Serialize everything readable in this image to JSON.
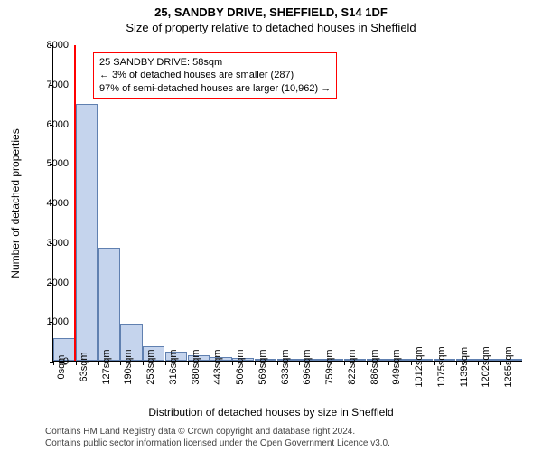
{
  "title_line1": "25, SANDBY DRIVE, SHEFFIELD, S14 1DF",
  "title_line2": "Size of property relative to detached houses in Sheffield",
  "ylabel": "Number of detached properties",
  "xlabel": "Distribution of detached houses by size in Sheffield",
  "footer_line1": "Contains HM Land Registry data © Crown copyright and database right 2024.",
  "footer_line2": "Contains public sector information licensed under the Open Government Licence v3.0.",
  "chart": {
    "type": "histogram",
    "y_max": 8000,
    "ytick_step": 1000,
    "bar_fill": "#c5d4ed",
    "bar_stroke": "#6080b0",
    "marker_color": "#ff0000",
    "marker_sqm": 58,
    "x_labels": [
      "0sqm",
      "63sqm",
      "127sqm",
      "190sqm",
      "253sqm",
      "316sqm",
      "380sqm",
      "443sqm",
      "506sqm",
      "569sqm",
      "633sqm",
      "696sqm",
      "759sqm",
      "822sqm",
      "886sqm",
      "949sqm",
      "1012sqm",
      "1075sqm",
      "1139sqm",
      "1202sqm",
      "1265sqm"
    ],
    "values": [
      580,
      6500,
      2850,
      930,
      370,
      220,
      140,
      90,
      70,
      50,
      40,
      30,
      25,
      20,
      18,
      15,
      12,
      10,
      8,
      6,
      4
    ]
  },
  "info_box": {
    "line1": "25 SANDBY DRIVE: 58sqm",
    "line2": "← 3% of detached houses are smaller (287)",
    "line3": "97% of semi-detached houses are larger (10,962) →"
  }
}
